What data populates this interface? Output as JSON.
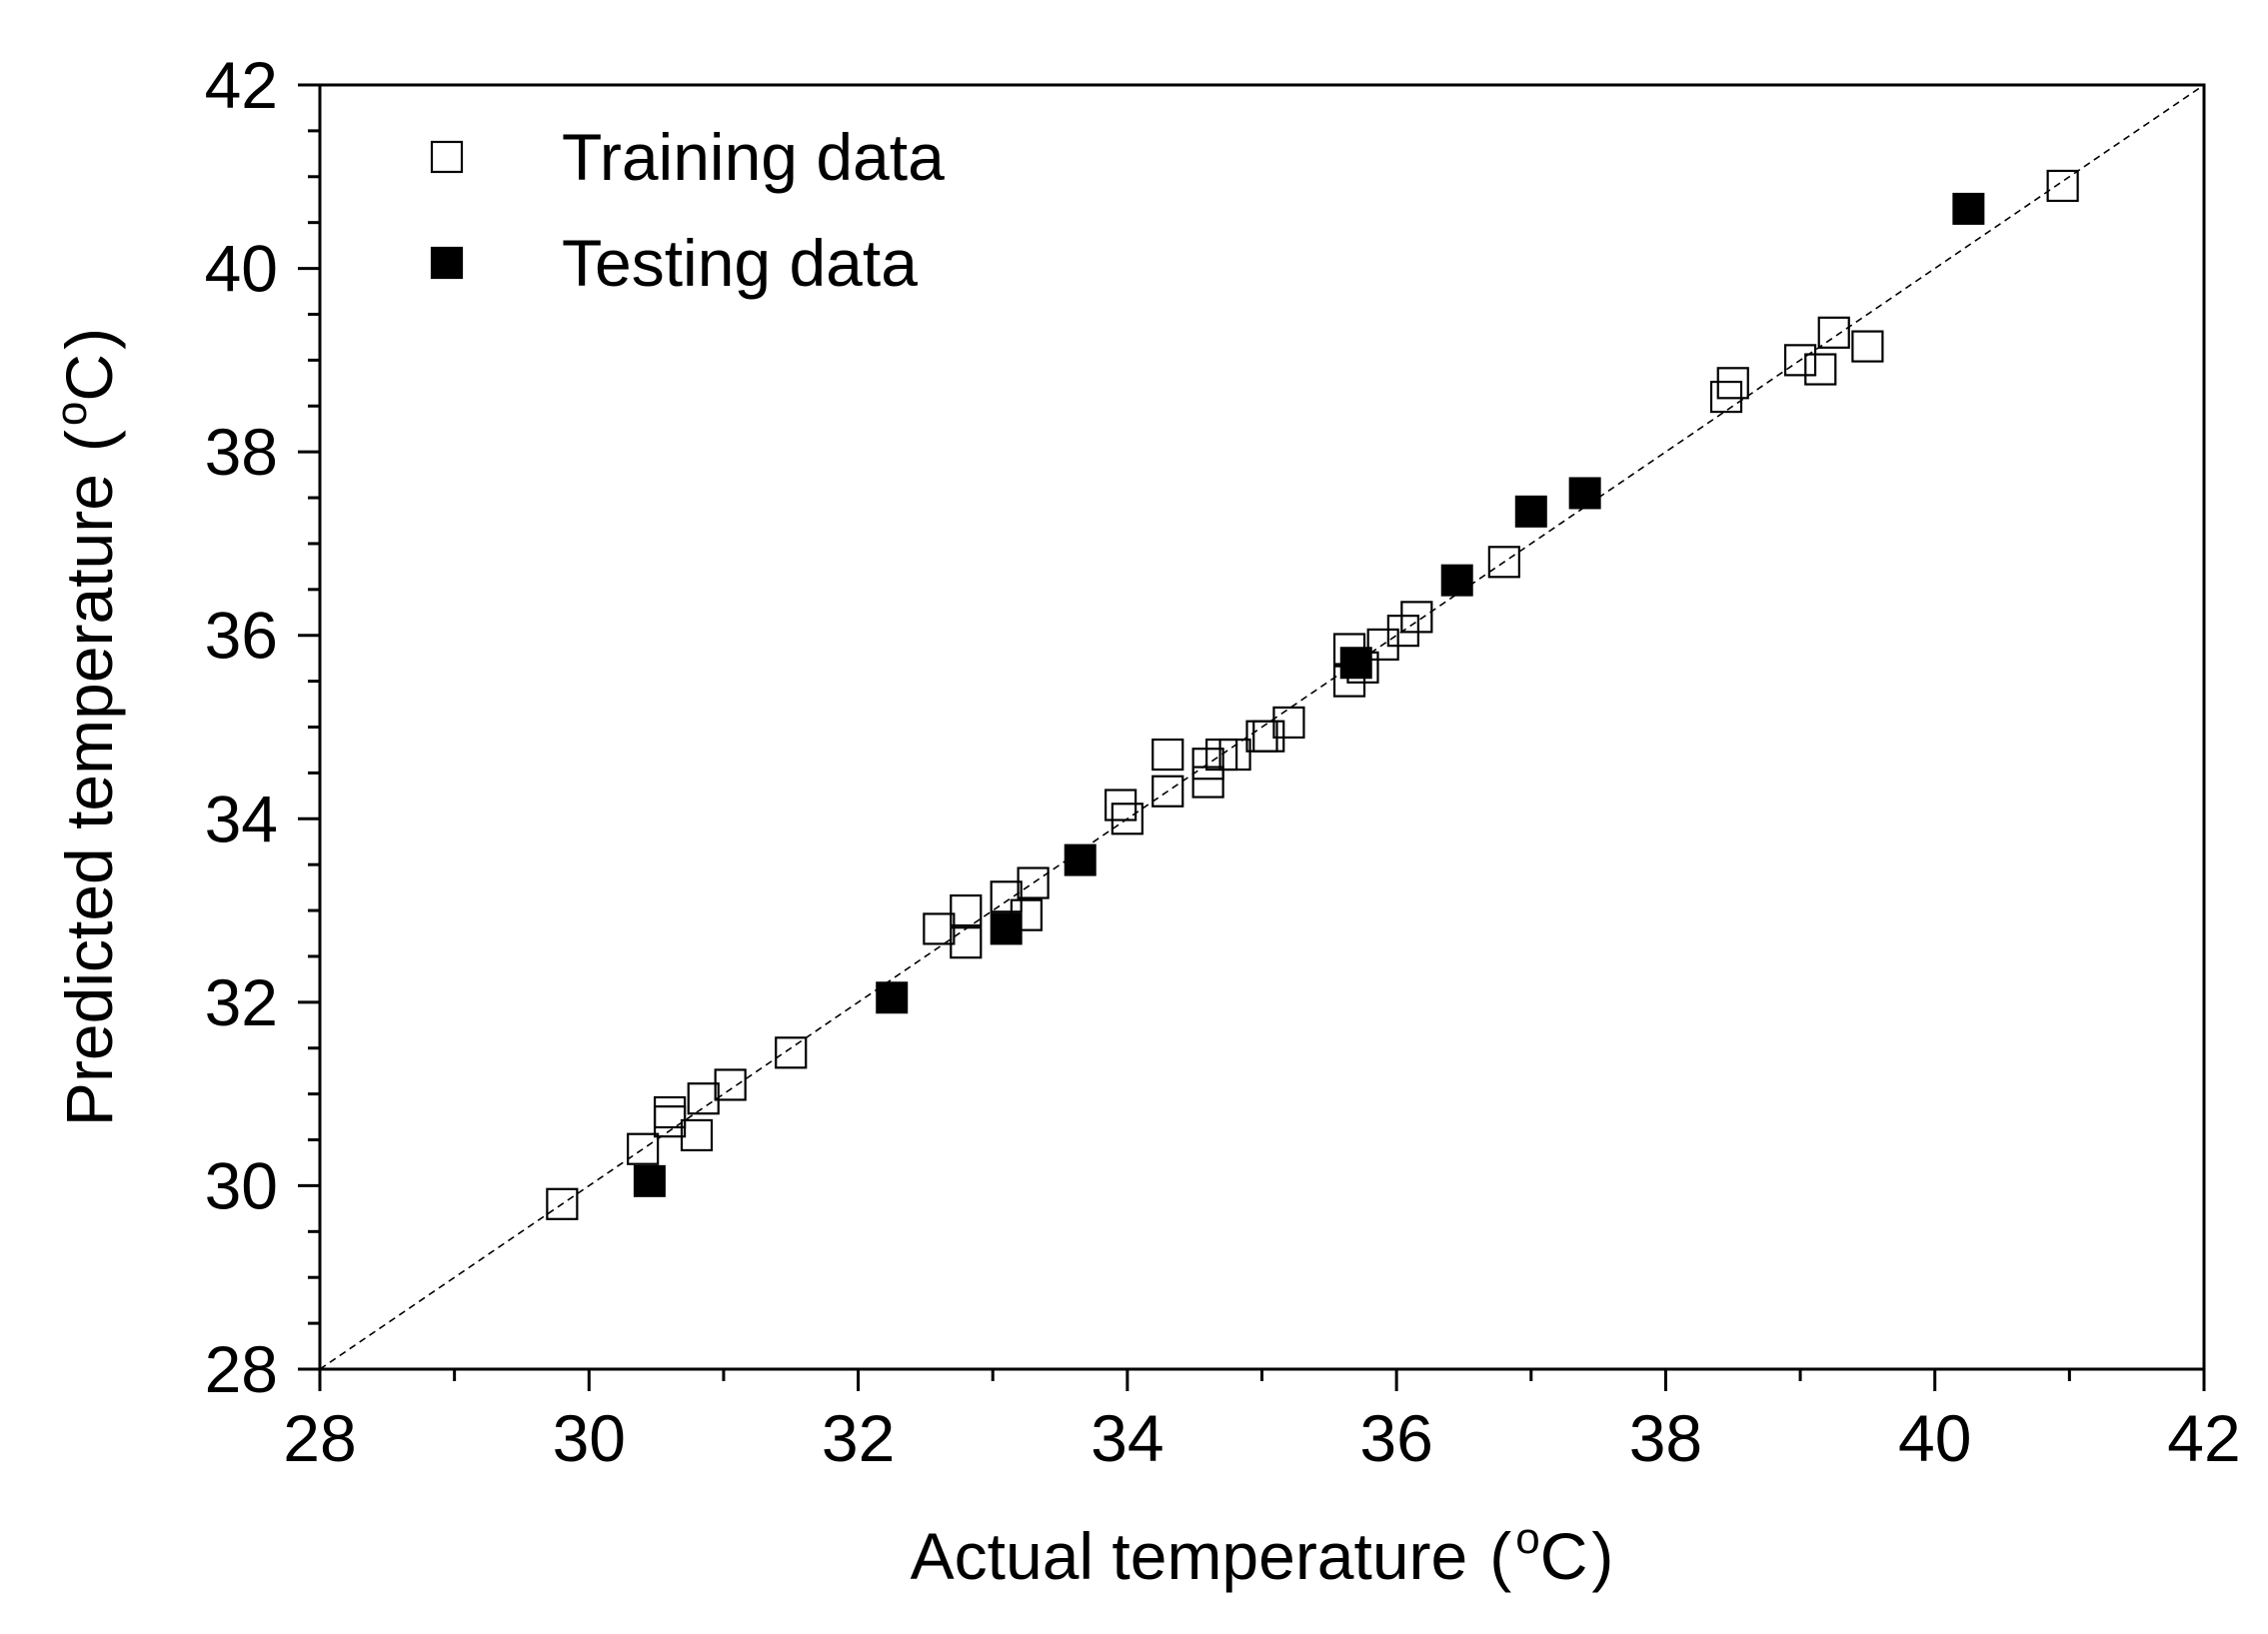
{
  "chart_data": {
    "type": "scatter",
    "title": "",
    "xlabel": "Actual temperature",
    "ylabel": "Predicted temperature",
    "unit_paren_open": "(",
    "unit_degree": "o",
    "unit_letter": "C",
    "unit_paren_close": ")",
    "xlim": [
      28,
      42
    ],
    "ylim": [
      28,
      42
    ],
    "x_ticks": [
      28,
      30,
      32,
      34,
      36,
      38,
      40,
      42
    ],
    "y_ticks": [
      28,
      30,
      32,
      34,
      36,
      38,
      40,
      42
    ],
    "reference_line": {
      "from": [
        28,
        28
      ],
      "to": [
        42,
        42
      ],
      "style": "dashed"
    },
    "legend": {
      "position": "top-left",
      "entries": [
        "Training data",
        "Testing data"
      ]
    },
    "series": [
      {
        "name": "Training data",
        "marker": "open-square",
        "color": "#000000",
        "points": [
          [
            29.8,
            29.8
          ],
          [
            30.4,
            30.4
          ],
          [
            30.6,
            30.7
          ],
          [
            30.6,
            30.8
          ],
          [
            30.8,
            30.55
          ],
          [
            30.85,
            30.95
          ],
          [
            31.05,
            31.1
          ],
          [
            31.5,
            31.45
          ],
          [
            32.6,
            32.8
          ],
          [
            32.8,
            33.0
          ],
          [
            32.8,
            32.65
          ],
          [
            33.1,
            33.15
          ],
          [
            33.25,
            32.95
          ],
          [
            33.3,
            33.3
          ],
          [
            34.0,
            34.0
          ],
          [
            33.95,
            34.15
          ],
          [
            34.3,
            34.3
          ],
          [
            34.3,
            34.7
          ],
          [
            34.6,
            34.4
          ],
          [
            34.6,
            34.6
          ],
          [
            34.7,
            34.7
          ],
          [
            34.8,
            34.7
          ],
          [
            35.0,
            34.9
          ],
          [
            35.05,
            34.9
          ],
          [
            35.2,
            35.05
          ],
          [
            35.65,
            35.5
          ],
          [
            35.65,
            35.85
          ],
          [
            35.75,
            35.65
          ],
          [
            35.9,
            35.9
          ],
          [
            36.05,
            36.05
          ],
          [
            36.15,
            36.2
          ],
          [
            36.8,
            36.8
          ],
          [
            38.45,
            38.6
          ],
          [
            38.5,
            38.75
          ],
          [
            39.0,
            39.0
          ],
          [
            39.15,
            38.9
          ],
          [
            39.25,
            39.3
          ],
          [
            39.5,
            39.15
          ],
          [
            40.95,
            40.9
          ]
        ]
      },
      {
        "name": "Testing data",
        "marker": "filled-square",
        "color": "#000000",
        "points": [
          [
            30.45,
            30.05
          ],
          [
            32.25,
            32.05
          ],
          [
            33.1,
            32.8
          ],
          [
            33.65,
            33.55
          ],
          [
            35.7,
            35.7
          ],
          [
            36.45,
            36.6
          ],
          [
            37.0,
            37.35
          ],
          [
            37.4,
            37.55
          ],
          [
            40.25,
            40.65
          ]
        ]
      }
    ]
  }
}
